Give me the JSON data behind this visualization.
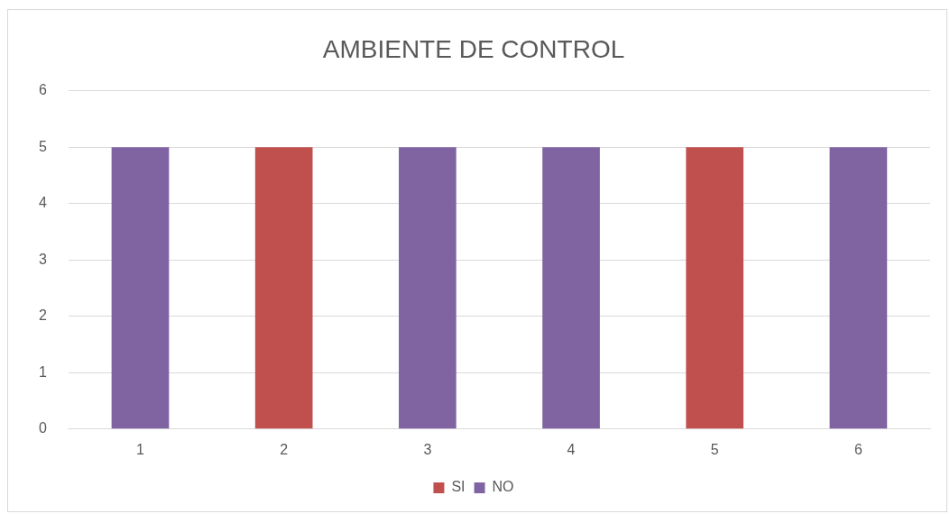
{
  "chart_data": {
    "type": "bar",
    "title": "AMBIENTE DE CONTROL",
    "categories": [
      "1",
      "2",
      "3",
      "4",
      "5",
      "6"
    ],
    "series": [
      {
        "name": "SI",
        "color": "#c0504d",
        "values": [
          null,
          5,
          null,
          null,
          5,
          null
        ]
      },
      {
        "name": "NO",
        "color": "#8064a2",
        "values": [
          5,
          null,
          5,
          5,
          null,
          5
        ]
      }
    ],
    "stacked": true,
    "ylim": [
      0,
      6
    ],
    "yticks": [
      0,
      1,
      2,
      3,
      4,
      5,
      6
    ],
    "grid": "y",
    "legend": "bottom"
  }
}
